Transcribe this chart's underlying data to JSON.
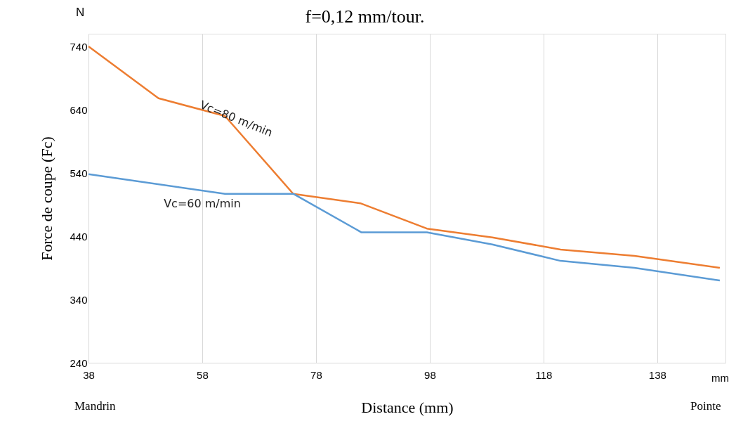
{
  "chart_data": {
    "type": "line",
    "title": "f=0,12 mm/tour.",
    "xlabel": "Distance (mm)",
    "ylabel": "Force de coupe (Fc)",
    "annotations": [
      "N",
      "mm",
      "Mandrin",
      "Pointe"
    ],
    "series": [
      {
        "name": "Vc=80 m/min",
        "color": "#ed7d31",
        "x": [
          38,
          50.3,
          62,
          74,
          85.8,
          97.5,
          109,
          121,
          134,
          149
        ],
        "values": [
          740,
          658,
          630,
          507,
          492,
          452,
          438,
          419,
          409,
          390
        ]
      },
      {
        "name": "Vc=60 m/min",
        "color": "#5b9bd5",
        "x": [
          38,
          62,
          74,
          86,
          97.5,
          109,
          121,
          134,
          149
        ],
        "values": [
          538,
          507,
          507,
          446,
          446,
          427,
          401,
          390,
          370
        ]
      }
    ],
    "xlim": [
      38,
      150
    ],
    "xticks": [
      38,
      58,
      78,
      98,
      118,
      138
    ],
    "ylim": [
      240,
      760
    ],
    "yticks": [
      240,
      340,
      440,
      540,
      640,
      740
    ],
    "grid": "x",
    "legend": false,
    "marker": "none",
    "line_style": "solid"
  }
}
